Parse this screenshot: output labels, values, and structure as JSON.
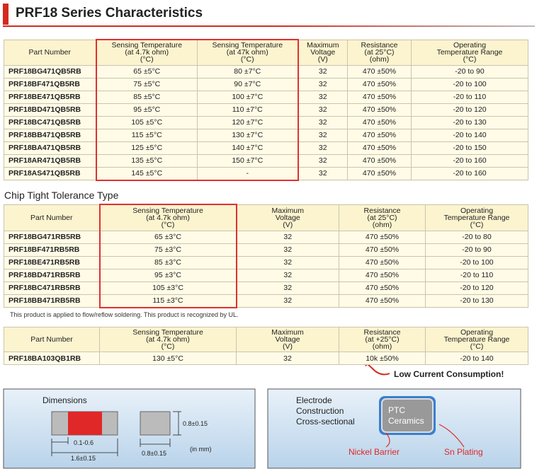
{
  "title": "PRF18 Series Characteristics",
  "table1": {
    "header": [
      [
        "Part Number"
      ],
      [
        "Sensing Temperature",
        "(at 4.7k ohm)",
        "(°C)"
      ],
      [
        "Sensing Temperature",
        "(at 47k ohm)",
        "(°C)"
      ],
      [
        "Maximum",
        "Voltage",
        "(V)"
      ],
      [
        "Resistance",
        "(at 25°C)",
        "(ohm)"
      ],
      [
        "Operating",
        "Temperature Range",
        "(°C)"
      ]
    ],
    "rows": [
      [
        "PRF18BG471QB5RB",
        "65 ±5°C",
        "80 ±7°C",
        "32",
        "470 ±50%",
        "-20 to 90"
      ],
      [
        "PRF18BF471QB5RB",
        "75 ±5°C",
        "90 ±7°C",
        "32",
        "470 ±50%",
        "-20 to 100"
      ],
      [
        "PRF18BE471QB5RB",
        "85 ±5°C",
        "100 ±7°C",
        "32",
        "470 ±50%",
        "-20 to 110"
      ],
      [
        "PRF18BD471QB5RB",
        "95 ±5°C",
        "110 ±7°C",
        "32",
        "470 ±50%",
        "-20 to 120"
      ],
      [
        "PRF18BC471QB5RB",
        "105 ±5°C",
        "120 ±7°C",
        "32",
        "470 ±50%",
        "-20 to 130"
      ],
      [
        "PRF18BB471QB5RB",
        "115 ±5°C",
        "130 ±7°C",
        "32",
        "470 ±50%",
        "-20 to 140"
      ],
      [
        "PRF18BA471QB5RB",
        "125 ±5°C",
        "140 ±7°C",
        "32",
        "470 ±50%",
        "-20 to 150"
      ],
      [
        "PRF18AR471QB5RB",
        "135 ±5°C",
        "150 ±7°C",
        "32",
        "470 ±50%",
        "-20 to 160"
      ],
      [
        "PRF18AS471QB5RB",
        "145 ±5°C",
        "-",
        "32",
        "470 ±50%",
        "-20 to 160"
      ]
    ]
  },
  "section2_title": "Chip Tight Tolerance Type",
  "table2": {
    "header": [
      [
        "Part Number"
      ],
      [
        "Sensing Temperature",
        "(at 4.7k ohm)",
        "(°C)"
      ],
      [
        "Maximum",
        "Voltage",
        "(V)"
      ],
      [
        "Resistance",
        "(at 25°C)",
        "(ohm)"
      ],
      [
        "Operating",
        "Temperature Range",
        "(°C)"
      ]
    ],
    "rows": [
      [
        "PRF18BG471RB5RB",
        "65 ±3°C",
        "32",
        "470 ±50%",
        "-20 to 80"
      ],
      [
        "PRF18BF471RB5RB",
        "75 ±3°C",
        "32",
        "470 ±50%",
        "-20 to 90"
      ],
      [
        "PRF18BE471RB5RB",
        "85 ±3°C",
        "32",
        "470 ±50%",
        "-20 to 100"
      ],
      [
        "PRF18BD471RB5RB",
        "95 ±3°C",
        "32",
        "470 ±50%",
        "-20 to 110"
      ],
      [
        "PRF18BC471RB5RB",
        "105 ±3°C",
        "32",
        "470 ±50%",
        "-20 to 120"
      ],
      [
        "PRF18BB471RB5RB",
        "115 ±3°C",
        "32",
        "470 ±50%",
        "-20 to 130"
      ]
    ]
  },
  "note": "This product is applied to flow/reflow soldering. This product is recognized by UL.",
  "table3": {
    "header": [
      [
        "Part Number"
      ],
      [
        "Sensing Temperature",
        "(at 4.7k ohm)",
        "(°C)"
      ],
      [
        "Maximum",
        "Voltage",
        "(V)"
      ],
      [
        "Resistance",
        "(at +25°C)",
        "(ohm)"
      ],
      [
        "Operating",
        "Temperature Range",
        "(°C)"
      ]
    ],
    "rows": [
      [
        "PRF18BA103QB1RB",
        "130 ±5°C",
        "32",
        "10k ±50%",
        "-20 to 140"
      ]
    ]
  },
  "callout": "Low Current Consumption!",
  "dimensions": {
    "title": "Dimensions",
    "height": "0.8±0.15",
    "electrode": "0.1-0.6",
    "length": "1.6±0.15",
    "width": "0.8±0.15",
    "unit": "(in mm)"
  },
  "construction": {
    "title": [
      "Electrode",
      "Construction",
      "Cross-sectional"
    ],
    "core": [
      "PTC",
      "Ceramics"
    ],
    "nickel": "Nickel Barrier",
    "sn": "Sn Plating"
  }
}
